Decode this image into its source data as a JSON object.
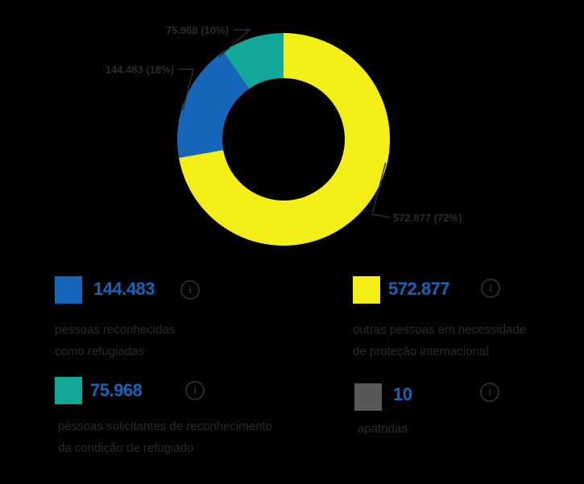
{
  "chart_data": {
    "type": "pie",
    "variant": "donut",
    "slices": [
      {
        "label": "572.877",
        "value": 572877,
        "percent_label": "572.877 (72%)",
        "color": "#f3ee16"
      },
      {
        "label": "144.483",
        "value": 144483,
        "percent_label": "144.483 (18%)",
        "color": "#1565b8"
      },
      {
        "label": "75.968",
        "value": 75968,
        "percent_label": "75.968 (10%)",
        "color": "#12a898"
      },
      {
        "label": "10",
        "value": 10,
        "percent_label": "",
        "color": "#585858"
      }
    ]
  },
  "legend": {
    "refugees": {
      "value": "144.483",
      "desc_line1": "pessoas reconhecidas",
      "desc_line2": "como refugiadas",
      "color": "#1565b8"
    },
    "protection": {
      "value": "572.877",
      "desc_line1": "outras pessoas em necessidade",
      "desc_line2": "de proteção internacional",
      "color": "#f3ee16"
    },
    "applicants": {
      "value": "75.968",
      "desc_line1": "pessoas solicitantes de reconhecimento",
      "desc_line2": "da condição de refugiado",
      "color": "#12a898"
    },
    "stateless": {
      "value": "10",
      "desc_line1": "apátridas",
      "color": "#585858"
    }
  },
  "icons": {
    "info": "info-icon",
    "info_glyph": "i"
  }
}
